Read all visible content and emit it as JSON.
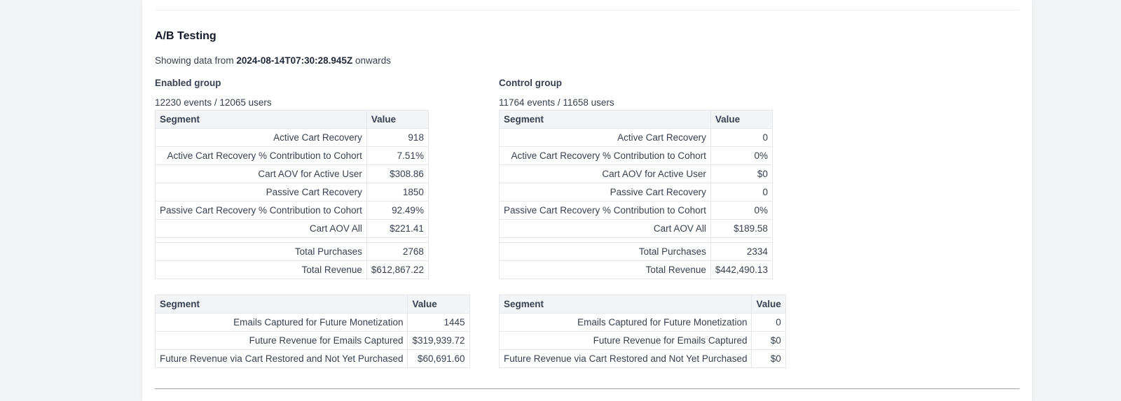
{
  "section": {
    "title": "A/B Testing",
    "date_prefix": "Showing data from",
    "date_value": "2024-08-14T07:30:28.945Z",
    "date_suffix": "onwards"
  },
  "headers": {
    "segment": "Segment",
    "value": "Value"
  },
  "enabled": {
    "title": "Enabled group",
    "stats": "12230 events / 12065 users",
    "metrics": [
      {
        "label": "Active Cart Recovery",
        "value": "918"
      },
      {
        "label": "Active Cart Recovery % Contribution to Cohort",
        "value": "7.51%"
      },
      {
        "label": "Cart AOV for Active User",
        "value": "$308.86"
      },
      {
        "label": "Passive Cart Recovery",
        "value": "1850"
      },
      {
        "label": "Passive Cart Recovery % Contribution to Cohort",
        "value": "92.49%"
      },
      {
        "label": "Cart AOV All",
        "value": "$221.41"
      },
      {
        "label": "Total Purchases",
        "value": "2768"
      },
      {
        "label": "Total Revenue",
        "value": "$612,867.22"
      }
    ],
    "future": [
      {
        "label": "Emails Captured for Future Monetization",
        "value": "1445"
      },
      {
        "label": "Future Revenue for Emails Captured",
        "value": "$319,939.72"
      },
      {
        "label": "Future Revenue via Cart Restored and Not Yet Purchased",
        "value": "$60,691.60"
      }
    ]
  },
  "control": {
    "title": "Control group",
    "stats": "11764 events / 11658 users",
    "metrics": [
      {
        "label": "Active Cart Recovery",
        "value": "0"
      },
      {
        "label": "Active Cart Recovery % Contribution to Cohort",
        "value": "0%"
      },
      {
        "label": "Cart AOV for Active User",
        "value": "$0"
      },
      {
        "label": "Passive Cart Recovery",
        "value": "0"
      },
      {
        "label": "Passive Cart Recovery % Contribution to Cohort",
        "value": "0%"
      },
      {
        "label": "Cart AOV All",
        "value": "$189.58"
      },
      {
        "label": "Total Purchases",
        "value": "2334"
      },
      {
        "label": "Total Revenue",
        "value": "$442,490.13"
      }
    ],
    "future": [
      {
        "label": "Emails Captured for Future Monetization",
        "value": "0"
      },
      {
        "label": "Future Revenue for Emails Captured",
        "value": "$0"
      },
      {
        "label": "Future Revenue via Cart Restored and Not Yet Purchased",
        "value": "$0"
      }
    ]
  }
}
